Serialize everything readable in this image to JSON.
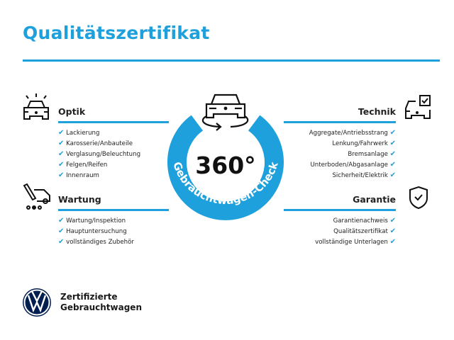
{
  "title": "Qualitätszertifikat",
  "badge": {
    "degrees": "360°",
    "ring_text": "Gebrauchtwagen-Check"
  },
  "sections": {
    "optik": {
      "heading": "Optik",
      "icon": "car-lights-icon",
      "items": [
        "Lackierung",
        "Karosserie/Anbauteile",
        "Verglasung/Beleuchtung",
        "Felgen/Reifen",
        "Innenraum"
      ]
    },
    "wartung": {
      "heading": "Wartung",
      "icon": "service-tools-icon",
      "items": [
        "Wartung/Inspektion",
        "Hauptuntersuchung",
        "vollständiges Zubehör"
      ]
    },
    "technik": {
      "heading": "Technik",
      "icon": "car-check-icon",
      "items": [
        "Aggregate/Antriebsstrang",
        "Lenkung/Fahrwerk",
        "Bremsanlage",
        "Unterboden/Abgasanlage",
        "Sicherheit/Elektrik"
      ]
    },
    "garantie": {
      "heading": "Garantie",
      "icon": "shield-check-icon",
      "items": [
        "Garantienachweis",
        "Qualitätszertifikat",
        "vollständige Unterlagen"
      ]
    }
  },
  "check_glyph": "✔",
  "brand": {
    "line1": "Zertifizierte",
    "line2": "Gebrauchtwagen",
    "logo": "vw-logo"
  },
  "colors": {
    "accent": "#1ea0dc",
    "text": "#222222"
  }
}
